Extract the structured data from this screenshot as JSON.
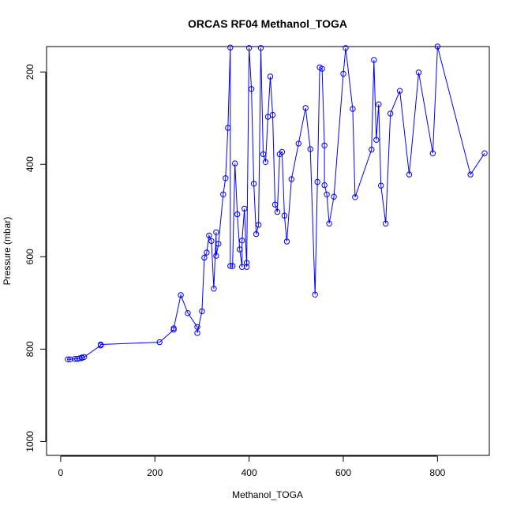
{
  "chart_data": {
    "type": "line",
    "title": "ORCAS RF04 Methanol_TOGA",
    "xlabel": "Methanol_TOGA",
    "ylabel": "Pressure (mbar)",
    "xlim": [
      -30,
      910
    ],
    "ylim": [
      1030,
      145
    ],
    "y_reversed": true,
    "xticks": [
      0,
      200,
      400,
      600,
      800
    ],
    "yticks": [
      200,
      400,
      600,
      800,
      1000
    ],
    "grid": false,
    "legend": "none",
    "colors": {
      "series": "#0000ff",
      "axis": "#000000",
      "background": "#ffffff"
    },
    "series": [
      {
        "marker": "open-circle",
        "x": [
          15,
          20,
          30,
          35,
          40,
          45,
          45,
          50,
          85,
          85,
          210,
          240,
          240,
          255,
          270,
          290,
          290,
          300,
          305,
          310,
          315,
          320,
          325,
          330,
          330,
          335,
          345,
          350,
          355,
          360,
          360,
          365,
          370,
          375,
          380,
          385,
          385,
          390,
          395,
          395,
          400,
          405,
          410,
          415,
          420,
          425,
          430,
          435,
          440,
          445,
          450,
          455,
          460,
          465,
          470,
          475,
          480,
          490,
          505,
          520,
          530,
          540,
          545,
          550,
          555,
          560,
          560,
          565,
          570,
          580,
          600,
          605,
          620,
          625,
          660,
          665,
          670,
          675,
          680,
          690,
          700,
          720,
          740,
          760,
          790,
          800,
          870,
          900
        ],
        "y": [
          822,
          822,
          821,
          821,
          820,
          819,
          818,
          817,
          792,
          790,
          785,
          758,
          755,
          683,
          722,
          752,
          765,
          718,
          602,
          591,
          554,
          566,
          669,
          547,
          598,
          572,
          465,
          430,
          321,
          147,
          620,
          620,
          398,
          508,
          584,
          622,
          565,
          496,
          622,
          613,
          148,
          237,
          442,
          551,
          531,
          148,
          378,
          395,
          297,
          210,
          293,
          487,
          503,
          378,
          373,
          511,
          567,
          432,
          355,
          278,
          367,
          682,
          438,
          190,
          193,
          359,
          445,
          465,
          528,
          470,
          204,
          148,
          280,
          471,
          368,
          174,
          347,
          270,
          446,
          528,
          290,
          241,
          422,
          201,
          376,
          145,
          422,
          376
        ]
      }
    ]
  }
}
